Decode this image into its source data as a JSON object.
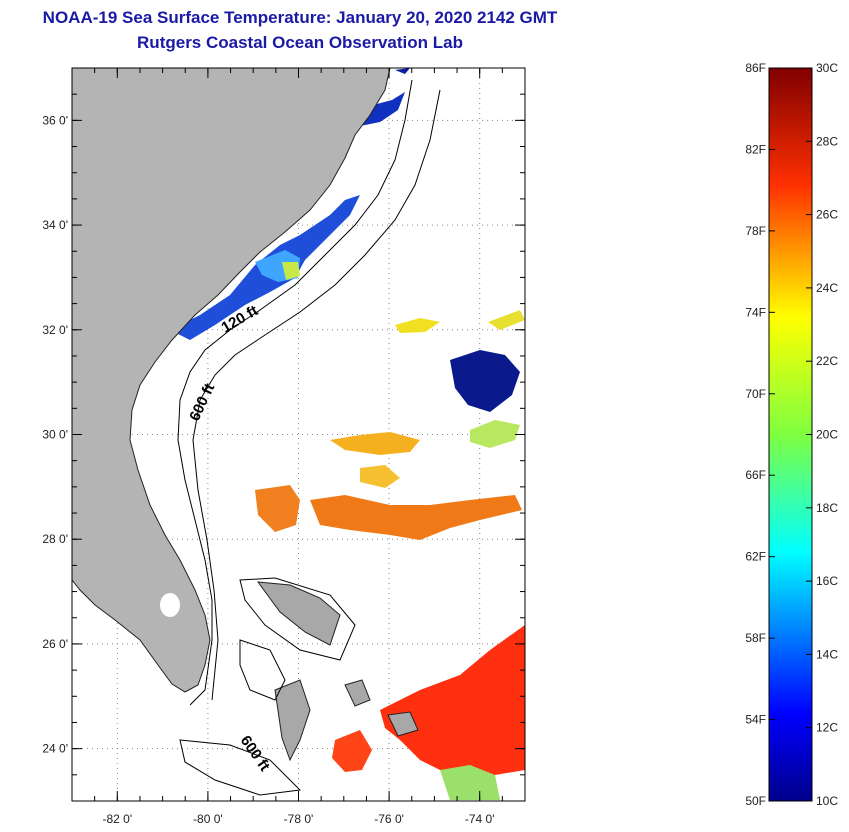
{
  "title": {
    "line1": "NOAA-19 Sea Surface Temperature:  January 20, 2020 2142 GMT",
    "line2": "Rutgers Coastal Ocean Observation Lab"
  },
  "map": {
    "lon_ticks": [
      -82,
      -80,
      -78,
      -76,
      -74
    ],
    "lat_ticks": [
      36,
      34,
      32,
      30,
      28,
      26,
      24
    ],
    "lon_labels": [
      "-82 0'",
      "-80 0'",
      "-78 0'",
      "-76 0'",
      "-74 0'"
    ],
    "lat_labels": [
      "36 0'",
      "34 0'",
      "32 0'",
      "30 0'",
      "28 0'",
      "26 0'",
      "24 0'"
    ],
    "lon_range": [
      -83.0,
      -73.0
    ],
    "lat_range": [
      23.0,
      37.0
    ],
    "grid": "dotted",
    "contour_labels": [
      "120 ft",
      "600 ft",
      "600 ft"
    ],
    "land_color": "#b4b4b4"
  },
  "colorbar": {
    "f_labels": [
      "86F",
      "82F",
      "78F",
      "74F",
      "70F",
      "66F",
      "62F",
      "58F",
      "54F",
      "50F"
    ],
    "c_labels": [
      "30C",
      "28C",
      "26C",
      "24C",
      "22C",
      "20C",
      "18C",
      "16C",
      "14C",
      "12C",
      "10C"
    ],
    "f_range": [
      50,
      86
    ],
    "c_range": [
      10,
      30
    ],
    "colormap": "jet"
  }
}
